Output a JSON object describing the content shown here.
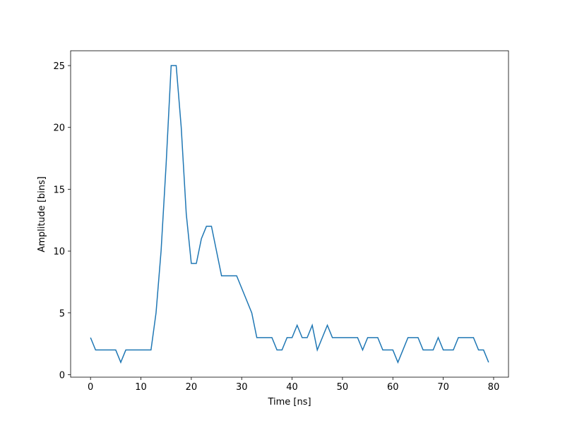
{
  "chart_data": {
    "type": "line",
    "x": [
      0,
      1,
      2,
      3,
      4,
      5,
      6,
      7,
      8,
      9,
      10,
      11,
      12,
      13,
      14,
      15,
      16,
      17,
      18,
      19,
      20,
      21,
      22,
      23,
      24,
      25,
      26,
      27,
      28,
      29,
      30,
      31,
      32,
      33,
      34,
      35,
      36,
      37,
      38,
      39,
      40,
      41,
      42,
      43,
      44,
      45,
      46,
      47,
      48,
      49,
      50,
      51,
      52,
      53,
      54,
      55,
      56,
      57,
      58,
      59,
      60,
      61,
      62,
      63,
      64,
      65,
      66,
      67,
      68,
      69,
      70,
      71,
      72,
      73,
      74,
      75,
      76,
      77,
      78,
      79
    ],
    "series": [
      {
        "color": "#1f77b4",
        "values": [
          3,
          2,
          2,
          2,
          2,
          2,
          1,
          2,
          2,
          2,
          2,
          2,
          2,
          5,
          10,
          17,
          25,
          25,
          20,
          13,
          9,
          9,
          11,
          12,
          12,
          10,
          8,
          8,
          8,
          8,
          7,
          6,
          5,
          3,
          3,
          3,
          3,
          2,
          2,
          3,
          3,
          4,
          3,
          3,
          4,
          2,
          3,
          4,
          3,
          3,
          3,
          3,
          3,
          3,
          2,
          3,
          3,
          3,
          2,
          2,
          2,
          1,
          2,
          3,
          3,
          3,
          2,
          2,
          2,
          3,
          2,
          2,
          2,
          3,
          3,
          3,
          3,
          2,
          2,
          1
        ]
      }
    ],
    "x_label": "Time [ns]",
    "y_label": "Amplitude [bins]",
    "xlim": [
      -3.95,
      82.95
    ],
    "ylim": [
      -0.2,
      26.2
    ],
    "xticks": [
      0,
      10,
      20,
      30,
      40,
      50,
      60,
      70,
      80
    ],
    "yticks": [
      0,
      5,
      10,
      15,
      20,
      25
    ]
  }
}
